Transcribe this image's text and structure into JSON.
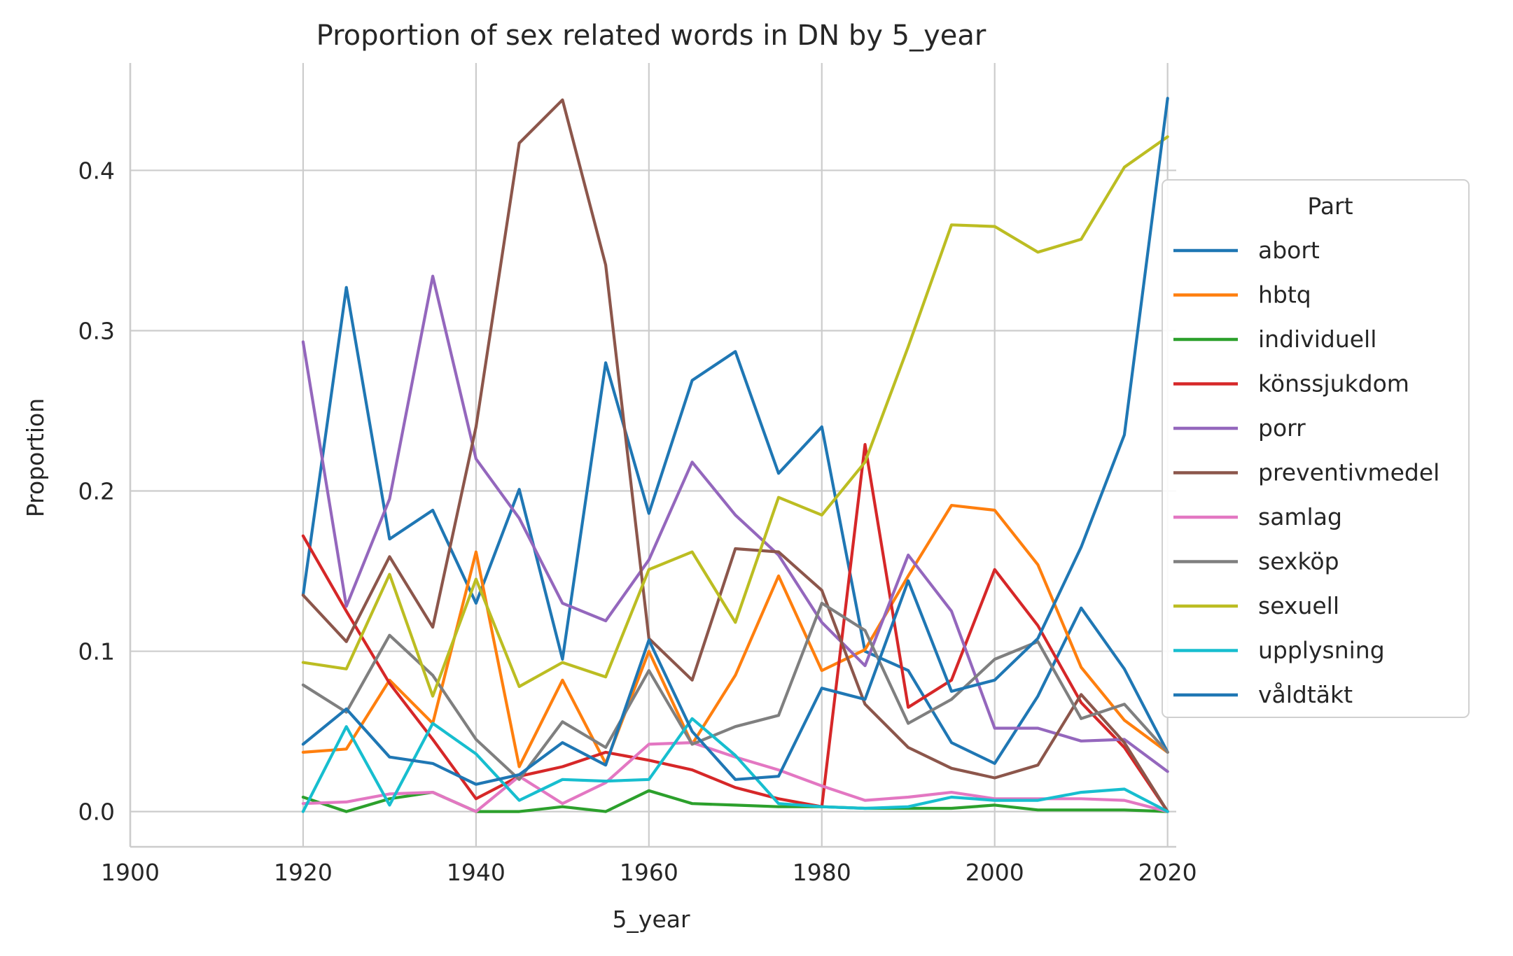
{
  "chart_data": {
    "type": "line",
    "title": "Proportion of sex related words in DN by 5_year",
    "xlabel": "5_year",
    "ylabel": "Proportion",
    "xlim": [
      1900,
      2021
    ],
    "ylim": [
      -0.022,
      0.467
    ],
    "xticks": [
      1900,
      1920,
      1940,
      1960,
      1980,
      2000,
      2020
    ],
    "yticks": [
      0.0,
      0.1,
      0.2,
      0.3,
      0.4
    ],
    "ytick_labels": [
      "0.0",
      "0.1",
      "0.2",
      "0.3",
      "0.4"
    ],
    "grid": true,
    "legend": {
      "title": "Part",
      "placement": "right"
    },
    "x": [
      1920,
      1925,
      1930,
      1935,
      1940,
      1945,
      1950,
      1955,
      1960,
      1965,
      1970,
      1975,
      1980,
      1985,
      1990,
      1995,
      2000,
      2005,
      2010,
      2015,
      2020
    ],
    "series": [
      {
        "name": "abort",
        "color": "#1f77b4",
        "values": [
          0.135,
          0.327,
          0.17,
          0.188,
          0.13,
          0.201,
          0.095,
          0.28,
          0.186,
          0.269,
          0.287,
          0.211,
          0.24,
          0.1,
          0.088,
          0.043,
          0.03,
          0.072,
          0.127,
          0.089,
          0.037
        ]
      },
      {
        "name": "hbtq",
        "color": "#ff7f0e",
        "values": [
          0.037,
          0.039,
          0.082,
          0.055,
          0.162,
          0.028,
          0.082,
          0.03,
          0.1,
          0.042,
          0.085,
          0.147,
          0.088,
          0.101,
          0.147,
          0.191,
          0.188,
          0.154,
          0.09,
          0.057,
          0.037
        ]
      },
      {
        "name": "individuell",
        "color": "#2ca02c",
        "values": [
          0.009,
          0.0,
          0.008,
          0.012,
          0.0,
          0.0,
          0.003,
          0.0,
          0.013,
          0.005,
          0.004,
          0.003,
          0.003,
          0.002,
          0.002,
          0.002,
          0.004,
          0.001,
          0.001,
          0.001,
          0.0
        ]
      },
      {
        "name": "könssjukdom",
        "color": "#d62728",
        "values": [
          0.172,
          0.125,
          0.08,
          0.045,
          0.008,
          0.022,
          0.028,
          0.037,
          0.032,
          0.026,
          0.015,
          0.008,
          0.003,
          0.229,
          0.065,
          0.082,
          0.151,
          0.116,
          0.068,
          0.04,
          0.0
        ]
      },
      {
        "name": "porr",
        "color": "#9467bd",
        "values": [
          0.293,
          0.128,
          0.195,
          0.334,
          0.22,
          0.183,
          0.13,
          0.119,
          0.157,
          0.218,
          0.185,
          0.16,
          0.118,
          0.091,
          0.16,
          0.125,
          0.052,
          0.052,
          0.044,
          0.045,
          0.025
        ]
      },
      {
        "name": "preventivmedel",
        "color": "#8c564b",
        "values": [
          0.135,
          0.106,
          0.159,
          0.115,
          0.24,
          0.417,
          0.444,
          0.341,
          0.108,
          0.082,
          0.164,
          0.162,
          0.138,
          0.067,
          0.04,
          0.027,
          0.021,
          0.029,
          0.073,
          0.043,
          0.0
        ]
      },
      {
        "name": "samlag",
        "color": "#e377c2",
        "values": [
          0.005,
          0.006,
          0.011,
          0.012,
          0.0,
          0.022,
          0.005,
          0.018,
          0.042,
          0.043,
          0.034,
          0.026,
          0.016,
          0.007,
          0.009,
          0.012,
          0.008,
          0.008,
          0.008,
          0.007,
          0.0
        ]
      },
      {
        "name": "sexköp",
        "color": "#7f7f7f",
        "values": [
          0.079,
          0.062,
          0.11,
          0.085,
          0.045,
          0.02,
          0.056,
          0.04,
          0.088,
          0.042,
          0.053,
          0.06,
          0.13,
          0.113,
          0.055,
          0.07,
          0.095,
          0.106,
          0.058,
          0.067,
          0.037
        ]
      },
      {
        "name": "sexuell",
        "color": "#bcbd22",
        "values": [
          0.093,
          0.089,
          0.148,
          0.072,
          0.145,
          0.078,
          0.093,
          0.084,
          0.151,
          0.162,
          0.118,
          0.196,
          0.185,
          0.218,
          0.29,
          0.366,
          0.365,
          0.349,
          0.357,
          0.402,
          0.421
        ]
      },
      {
        "name": "upplysning",
        "color": "#17becf",
        "values": [
          0.0,
          0.053,
          0.004,
          0.055,
          0.036,
          0.007,
          0.02,
          0.019,
          0.02,
          0.058,
          0.035,
          0.005,
          0.003,
          0.002,
          0.003,
          0.009,
          0.007,
          0.007,
          0.012,
          0.014,
          0.0
        ]
      },
      {
        "name": "våldtäkt",
        "color": "#1f77b4",
        "values": [
          0.042,
          0.064,
          0.034,
          0.03,
          0.017,
          0.023,
          0.043,
          0.029,
          0.107,
          0.05,
          0.02,
          0.022,
          0.077,
          0.07,
          0.144,
          0.075,
          0.082,
          0.108,
          0.165,
          0.235,
          0.445
        ]
      }
    ]
  }
}
